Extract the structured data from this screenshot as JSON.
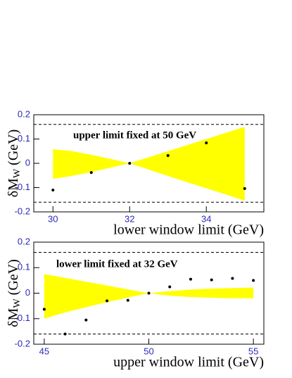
{
  "chart_data": [
    {
      "type": "scatter",
      "annotation": "upper limit fixed at 50 GeV",
      "xlabel": "lower window limit (GeV)",
      "ylabel": {
        "main": "δM",
        "sub": "W",
        "unit": "(GeV)"
      },
      "xlim": [
        29.5,
        35.5
      ],
      "xticks": [
        30,
        32,
        34
      ],
      "ylim": [
        -0.2,
        0.2
      ],
      "yticks": [
        -0.2,
        -0.1,
        0,
        0.1,
        0.2
      ],
      "hlines": [
        0.16,
        -0.16
      ],
      "band": {
        "color": "#ffff00",
        "x": [
          30,
          30.5,
          31,
          31.5,
          32,
          32.5,
          33,
          33.5,
          34,
          34.5,
          35
        ],
        "upper": [
          0.058,
          0.05,
          0.035,
          0.018,
          0,
          0.025,
          0.05,
          0.075,
          0.1,
          0.125,
          0.15
        ],
        "lower": [
          -0.064,
          -0.052,
          -0.036,
          -0.018,
          0,
          -0.026,
          -0.052,
          -0.078,
          -0.103,
          -0.128,
          -0.154
        ]
      },
      "points": {
        "color": "#000000",
        "x": [
          30,
          31,
          32,
          33,
          34,
          35
        ],
        "values": [
          -0.11,
          -0.038,
          0,
          0.032,
          0.084,
          -0.104
        ]
      }
    },
    {
      "type": "scatter",
      "annotation": "lower limit fixed at 32 GeV",
      "xlabel": "upper window limit (GeV)",
      "ylabel": {
        "main": "δM",
        "sub": "W",
        "unit": "(GeV)"
      },
      "xlim": [
        44.5,
        55.5
      ],
      "xticks": [
        45,
        50,
        55
      ],
      "ylim": [
        -0.2,
        0.2
      ],
      "yticks": [
        -0.2,
        -0.1,
        0,
        0.1,
        0.2
      ],
      "hlines": [
        0.16,
        -0.16
      ],
      "band": {
        "color": "#ffff00",
        "x": [
          45,
          46,
          47,
          48,
          49,
          50,
          51,
          52,
          53,
          54,
          55
        ],
        "upper": [
          0.075,
          0.06,
          0.045,
          0.03,
          0.015,
          0,
          0.008,
          0.014,
          0.018,
          0.02,
          0.022
        ],
        "lower": [
          -0.1,
          -0.075,
          -0.055,
          -0.035,
          -0.017,
          0,
          -0.01,
          -0.015,
          -0.018,
          -0.02,
          -0.02
        ]
      },
      "points": {
        "color": "#000000",
        "x": [
          45,
          46,
          47,
          48,
          49,
          50,
          51,
          52,
          53,
          54,
          55
        ],
        "values": [
          -0.063,
          -0.16,
          -0.105,
          -0.03,
          -0.028,
          0,
          0.025,
          0.055,
          0.052,
          0.058,
          0.05
        ]
      }
    }
  ]
}
